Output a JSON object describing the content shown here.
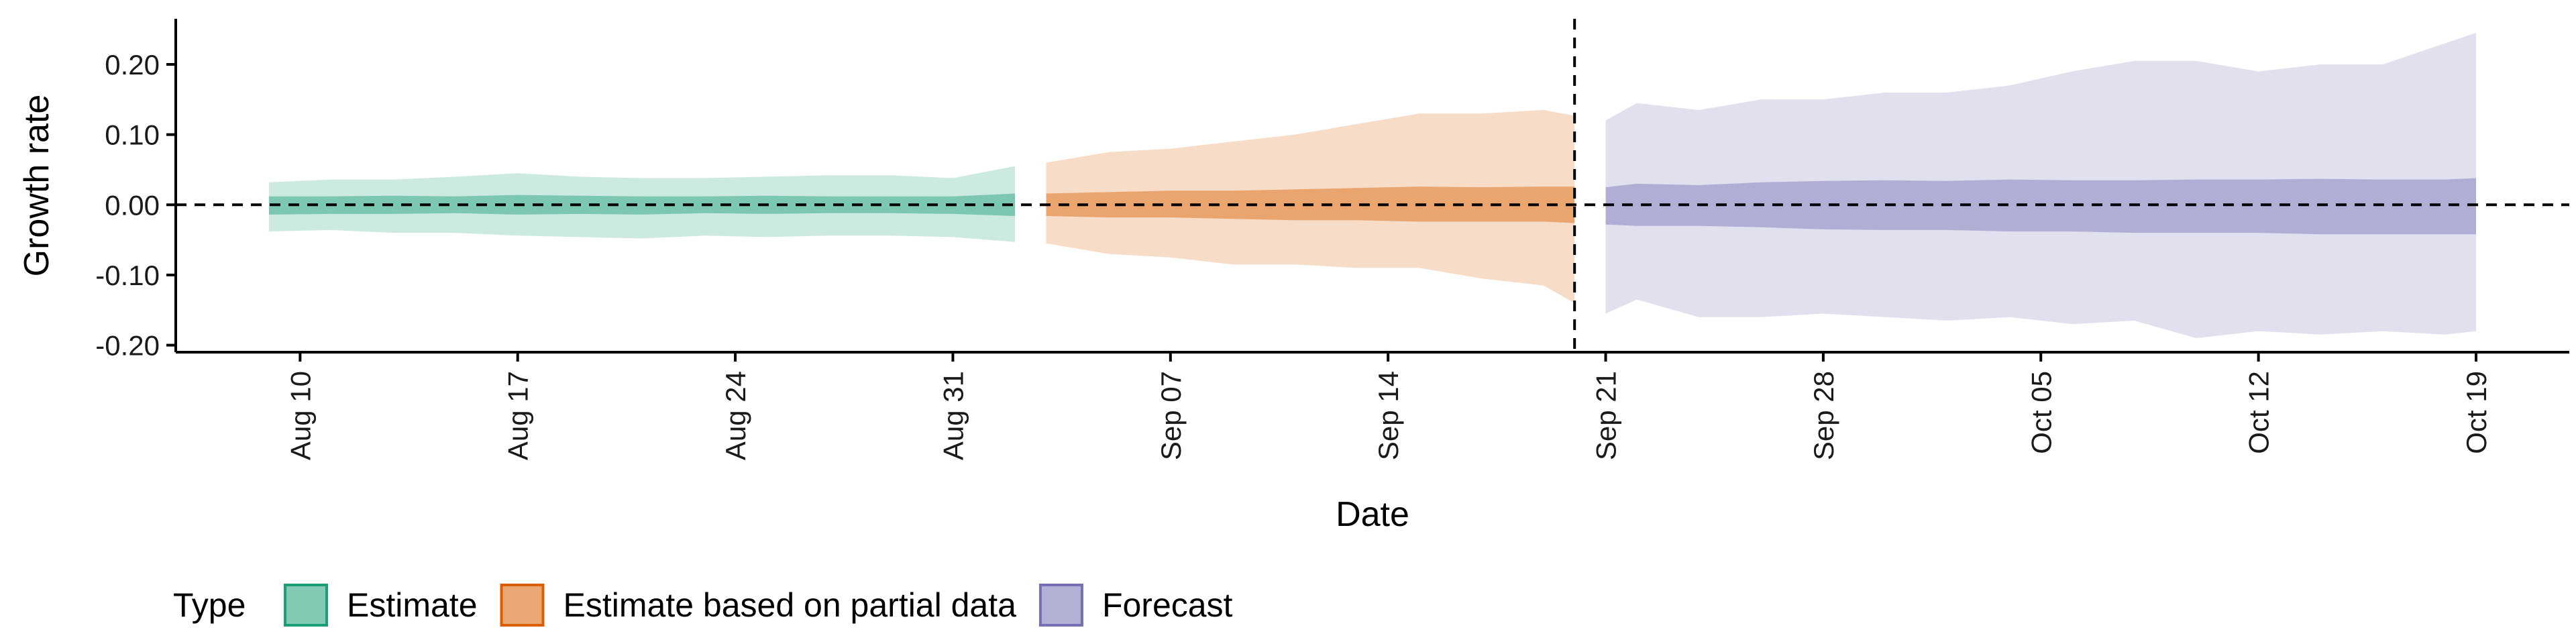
{
  "chart_data": {
    "type": "area",
    "title": "",
    "xlabel": "Date",
    "ylabel": "Growth rate",
    "xlim": [
      "2020-08-06",
      "2020-10-22"
    ],
    "ylim": [
      -0.21,
      0.265
    ],
    "x_ticks": [
      "2020-08-10",
      "2020-08-17",
      "2020-08-24",
      "2020-08-31",
      "2020-09-07",
      "2020-09-14",
      "2020-09-21",
      "2020-09-28",
      "2020-10-05",
      "2020-10-12",
      "2020-10-19"
    ],
    "x_tick_labels": [
      "Aug 10",
      "Aug 17",
      "Aug 24",
      "Aug 31",
      "Sep 07",
      "Sep 14",
      "Sep 21",
      "Sep 28",
      "Oct 05",
      "Oct 12",
      "Oct 19"
    ],
    "y_ticks": [
      -0.2,
      -0.1,
      0.0,
      0.1,
      0.2
    ],
    "y_tick_labels": [
      "-0.20",
      "-0.10",
      "0.00",
      "0.10",
      "0.20"
    ],
    "reference_lines": {
      "horizontal_y": 0.0,
      "vertical_x": "2020-09-20"
    },
    "grid": false,
    "legend": {
      "title": "Type",
      "position": "bottom-left"
    },
    "series": [
      {
        "name": "Estimate",
        "color": "#1b9e77",
        "x": [
          "2020-08-09",
          "2020-08-11",
          "2020-08-13",
          "2020-08-15",
          "2020-08-17",
          "2020-08-19",
          "2020-08-21",
          "2020-08-23",
          "2020-08-25",
          "2020-08-27",
          "2020-08-29",
          "2020-08-31",
          "2020-09-02"
        ],
        "upper_90": [
          0.032,
          0.036,
          0.036,
          0.04,
          0.045,
          0.04,
          0.038,
          0.038,
          0.04,
          0.042,
          0.042,
          0.038,
          0.055
        ],
        "lower_90": [
          -0.038,
          -0.036,
          -0.04,
          -0.04,
          -0.044,
          -0.046,
          -0.048,
          -0.044,
          -0.046,
          -0.044,
          -0.044,
          -0.046,
          -0.053
        ],
        "upper_50": [
          0.012,
          0.012,
          0.013,
          0.012,
          0.014,
          0.013,
          0.012,
          0.012,
          0.013,
          0.012,
          0.012,
          0.012,
          0.016
        ],
        "lower_50": [
          -0.014,
          -0.013,
          -0.013,
          -0.012,
          -0.014,
          -0.013,
          -0.014,
          -0.012,
          -0.013,
          -0.012,
          -0.012,
          -0.013,
          -0.016
        ]
      },
      {
        "name": "Estimate based on partial data",
        "color": "#d95f02",
        "x": [
          "2020-09-03",
          "2020-09-05",
          "2020-09-07",
          "2020-09-09",
          "2020-09-11",
          "2020-09-13",
          "2020-09-15",
          "2020-09-17",
          "2020-09-19",
          "2020-09-20"
        ],
        "upper_90": [
          0.06,
          0.075,
          0.08,
          0.09,
          0.1,
          0.115,
          0.13,
          0.13,
          0.135,
          0.127
        ],
        "lower_90": [
          -0.055,
          -0.07,
          -0.075,
          -0.085,
          -0.085,
          -0.09,
          -0.09,
          -0.105,
          -0.115,
          -0.14
        ],
        "upper_50": [
          0.016,
          0.018,
          0.02,
          0.02,
          0.022,
          0.024,
          0.026,
          0.025,
          0.026,
          0.026
        ],
        "lower_50": [
          -0.016,
          -0.018,
          -0.018,
          -0.02,
          -0.022,
          -0.022,
          -0.024,
          -0.024,
          -0.024,
          -0.026
        ]
      },
      {
        "name": "Forecast",
        "color": "#7570b3",
        "x": [
          "2020-09-21",
          "2020-09-22",
          "2020-09-24",
          "2020-09-26",
          "2020-09-28",
          "2020-09-30",
          "2020-10-02",
          "2020-10-04",
          "2020-10-06",
          "2020-10-08",
          "2020-10-10",
          "2020-10-12",
          "2020-10-14",
          "2020-10-16",
          "2020-10-18",
          "2020-10-19"
        ],
        "upper_90": [
          0.12,
          0.145,
          0.135,
          0.15,
          0.15,
          0.16,
          0.16,
          0.17,
          0.19,
          0.205,
          0.205,
          0.19,
          0.2,
          0.2,
          0.23,
          0.245
        ],
        "lower_90": [
          -0.155,
          -0.135,
          -0.16,
          -0.16,
          -0.155,
          -0.16,
          -0.165,
          -0.16,
          -0.17,
          -0.165,
          -0.19,
          -0.18,
          -0.185,
          -0.18,
          -0.185,
          -0.18
        ],
        "upper_50": [
          0.025,
          0.03,
          0.028,
          0.032,
          0.034,
          0.035,
          0.034,
          0.036,
          0.035,
          0.035,
          0.036,
          0.036,
          0.037,
          0.036,
          0.036,
          0.038
        ],
        "lower_50": [
          -0.028,
          -0.03,
          -0.03,
          -0.032,
          -0.035,
          -0.036,
          -0.036,
          -0.038,
          -0.038,
          -0.04,
          -0.04,
          -0.04,
          -0.042,
          -0.042,
          -0.042,
          -0.042
        ]
      }
    ]
  }
}
